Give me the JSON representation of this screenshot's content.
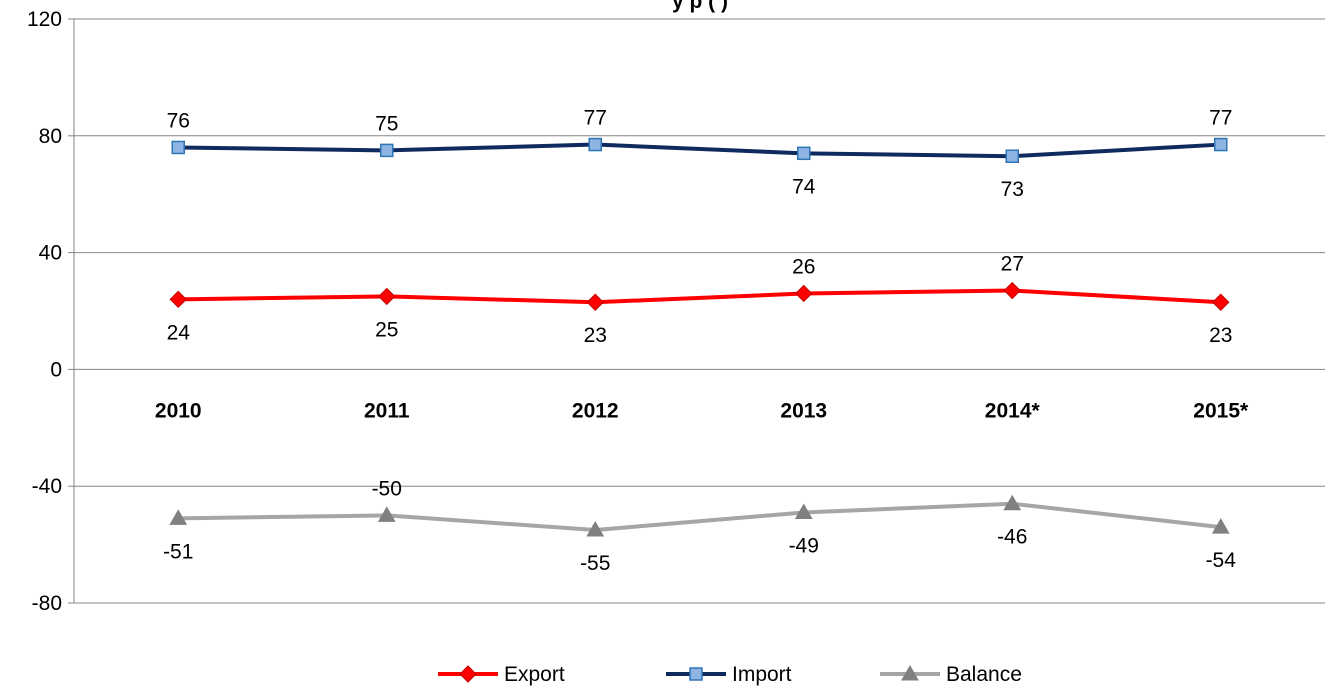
{
  "chart_data": {
    "type": "line",
    "title": "y      p           (  )",
    "categories": [
      "2010",
      "2011",
      "2012",
      "2013",
      "2014*",
      "2015*"
    ],
    "ylim": [
      -80,
      120
    ],
    "yticks": [
      -80,
      -40,
      0,
      40,
      80,
      120
    ],
    "grid": true,
    "legend_position": "bottom",
    "series": [
      {
        "name": "Export",
        "values": [
          24,
          25,
          23,
          26,
          27,
          23
        ],
        "color": "#ff0000",
        "marker": "diamond",
        "label_side": [
          "below",
          "below",
          "below",
          "above",
          "above",
          "below"
        ]
      },
      {
        "name": "Import",
        "values": [
          76,
          75,
          77,
          74,
          73,
          77
        ],
        "color": "#0f2a5e",
        "marker_fill": "#8db4e2",
        "marker": "square",
        "label_side": [
          "above",
          "above",
          "above",
          "below",
          "below",
          "above"
        ]
      },
      {
        "name": "Balance",
        "values": [
          -51,
          -50,
          -55,
          -49,
          -46,
          -54
        ],
        "color": "#a6a6a6",
        "marker_fill": "#808080",
        "marker": "triangle",
        "label_side": [
          "below",
          "above",
          "below",
          "below",
          "below",
          "below"
        ]
      }
    ]
  }
}
